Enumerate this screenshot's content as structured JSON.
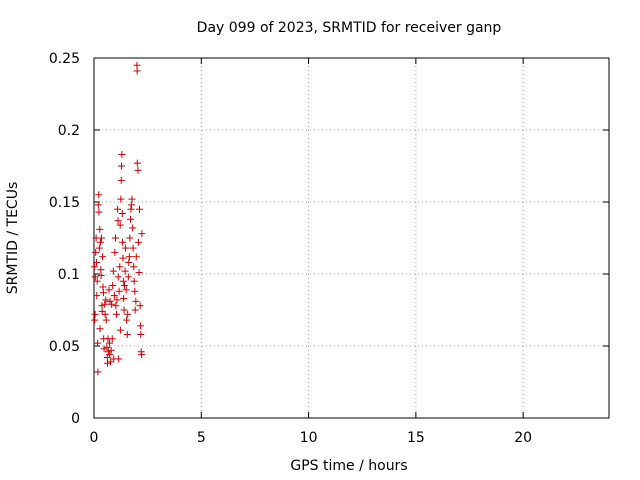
{
  "chart_data": {
    "type": "scatter",
    "title": "Day 099 of 2023, SRMTID for receiver ganp",
    "xlabel": "GPS time / hours",
    "ylabel": "SRMTID / TECUs",
    "xlim": [
      0,
      24
    ],
    "ylim": [
      0,
      0.25
    ],
    "x_ticks": [
      0,
      5,
      10,
      15,
      20
    ],
    "y_ticks": [
      0,
      0.05,
      0.1,
      0.15,
      0.2,
      0.25
    ],
    "x_tick_labels": [
      "0",
      "5",
      "10",
      "15",
      "20"
    ],
    "y_tick_labels": [
      "0",
      "0.05",
      "0.1",
      "0.15",
      "0.2",
      "0.25"
    ],
    "grid": true,
    "marker": "+",
    "color": "#cc0000",
    "series": [
      {
        "name": "SRMTID",
        "points": [
          [
            0.02,
            0.105
          ],
          [
            0.03,
            0.068
          ],
          [
            0.05,
            0.072
          ],
          [
            0.06,
            0.098
          ],
          [
            0.08,
            0.115
          ],
          [
            0.1,
            0.125
          ],
          [
            0.12,
            0.108
          ],
          [
            0.13,
            0.085
          ],
          [
            0.15,
            0.095
          ],
          [
            0.17,
            0.052
          ],
          [
            0.18,
            0.032
          ],
          [
            0.2,
            0.148
          ],
          [
            0.22,
            0.155
          ],
          [
            0.23,
            0.143
          ],
          [
            0.25,
            0.118
          ],
          [
            0.27,
            0.131
          ],
          [
            0.28,
            0.062
          ],
          [
            0.3,
            0.122
          ],
          [
            0.32,
            0.103
          ],
          [
            0.33,
            0.099
          ],
          [
            0.35,
            0.125
          ],
          [
            0.37,
            0.078
          ],
          [
            0.38,
            0.074
          ],
          [
            0.4,
            0.112
          ],
          [
            0.42,
            0.091
          ],
          [
            0.44,
            0.087
          ],
          [
            0.45,
            0.055
          ],
          [
            0.47,
            0.048
          ],
          [
            0.5,
            0.079
          ],
          [
            0.52,
            0.072
          ],
          [
            0.55,
            0.082
          ],
          [
            0.57,
            0.068
          ],
          [
            0.6,
            0.049
          ],
          [
            0.62,
            0.042
          ],
          [
            0.63,
            0.038
          ],
          [
            0.65,
            0.055
          ],
          [
            0.67,
            0.046
          ],
          [
            0.7,
            0.089
          ],
          [
            0.72,
            0.052
          ],
          [
            0.73,
            0.044
          ],
          [
            0.75,
            0.081
          ],
          [
            0.77,
            0.039
          ],
          [
            0.8,
            0.047
          ],
          [
            0.82,
            0.079
          ],
          [
            0.85,
            0.055
          ],
          [
            0.87,
            0.092
          ],
          [
            0.9,
            0.102
          ],
          [
            0.92,
            0.041
          ],
          [
            0.95,
            0.085
          ],
          [
            0.97,
            0.115
          ],
          [
            1.0,
            0.125
          ],
          [
            1.02,
            0.078
          ],
          [
            1.05,
            0.072
          ],
          [
            1.07,
            0.082
          ],
          [
            1.1,
            0.145
          ],
          [
            1.12,
            0.137
          ],
          [
            1.13,
            0.098
          ],
          [
            1.15,
            0.041
          ],
          [
            1.17,
            0.088
          ],
          [
            1.2,
            0.105
          ],
          [
            1.22,
            0.134
          ],
          [
            1.23,
            0.061
          ],
          [
            1.25,
            0.152
          ],
          [
            1.27,
            0.165
          ],
          [
            1.28,
            0.175
          ],
          [
            1.3,
            0.183
          ],
          [
            1.32,
            0.142
          ],
          [
            1.33,
            0.122
          ],
          [
            1.35,
            0.111
          ],
          [
            1.37,
            0.095
          ],
          [
            1.38,
            0.083
          ],
          [
            1.4,
            0.075
          ],
          [
            1.42,
            0.092
          ],
          [
            1.45,
            0.102
          ],
          [
            1.47,
            0.118
          ],
          [
            1.5,
            0.089
          ],
          [
            1.52,
            0.068
          ],
          [
            1.55,
            0.058
          ],
          [
            1.57,
            0.072
          ],
          [
            1.6,
            0.098
          ],
          [
            1.62,
            0.108
          ],
          [
            1.65,
            0.112
          ],
          [
            1.67,
            0.125
          ],
          [
            1.7,
            0.138
          ],
          [
            1.72,
            0.145
          ],
          [
            1.75,
            0.148
          ],
          [
            1.77,
            0.152
          ],
          [
            1.8,
            0.132
          ],
          [
            1.82,
            0.118
          ],
          [
            1.85,
            0.105
          ],
          [
            1.87,
            0.095
          ],
          [
            1.9,
            0.088
          ],
          [
            1.92,
            0.075
          ],
          [
            1.95,
            0.081
          ],
          [
            1.97,
            0.112
          ],
          [
            2.0,
            0.245
          ],
          [
            2.01,
            0.241
          ],
          [
            2.02,
            0.177
          ],
          [
            2.05,
            0.172
          ],
          [
            2.07,
            0.122
          ],
          [
            2.1,
            0.101
          ],
          [
            2.12,
            0.145
          ],
          [
            2.15,
            0.078
          ],
          [
            2.17,
            0.064
          ],
          [
            2.18,
            0.058
          ],
          [
            2.2,
            0.046
          ],
          [
            2.22,
            0.044
          ],
          [
            2.23,
            0.128
          ]
        ]
      }
    ]
  }
}
